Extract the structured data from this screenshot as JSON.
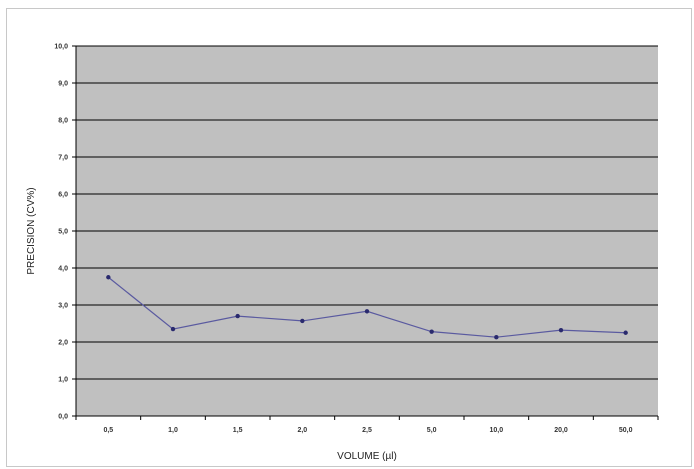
{
  "chart_data": {
    "type": "line",
    "title": "",
    "xlabel": "VOLUME (µl)",
    "ylabel": "PRECISION (CV%)",
    "categories": [
      "0,5",
      "1,0",
      "1,5",
      "2,0",
      "2,5",
      "5,0",
      "10,0",
      "20,0",
      "50,0"
    ],
    "series": [
      {
        "values": [
          3.75,
          2.35,
          2.7,
          2.57,
          2.83,
          2.28,
          2.13,
          2.32,
          2.25
        ]
      }
    ],
    "ylim": [
      0,
      10
    ],
    "yticks": [
      "0,0",
      "1,0",
      "2,0",
      "3,0",
      "4,0",
      "5,0",
      "6,0",
      "7,0",
      "8,0",
      "9,0",
      "10,0"
    ],
    "grid": true,
    "colors": {
      "plot_background": "#c0c0c0",
      "gridline": "#000000",
      "line": "#5a5aa0",
      "marker": "#2a2a6e"
    }
  }
}
